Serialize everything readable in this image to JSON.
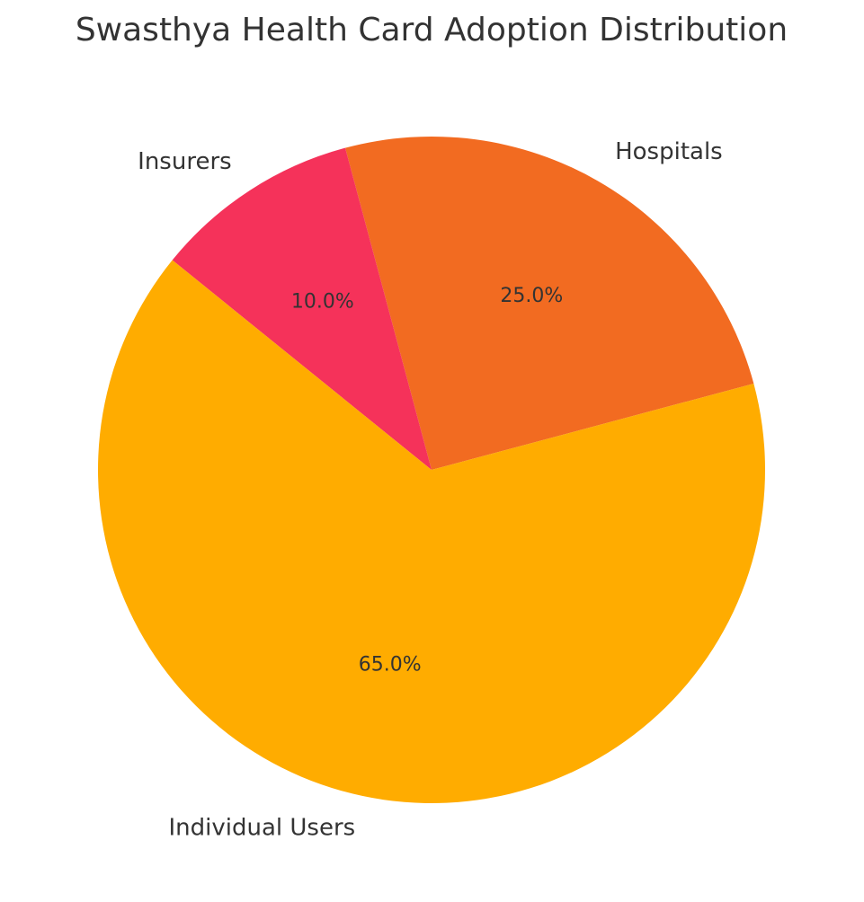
{
  "chart_data": {
    "type": "pie",
    "title": "Swasthya Health Card Adoption Distribution",
    "categories": [
      "Hospitals",
      "Insurers",
      "Individual Users"
    ],
    "values": [
      25,
      10,
      65
    ],
    "value_labels": [
      "25.0%",
      "10.0%",
      "65.0%"
    ],
    "colors": [
      "#F26B21",
      "#F5325A",
      "#FFAC00"
    ],
    "start_angle_deg": 15,
    "direction": "counterclockwise",
    "legend": "none"
  }
}
